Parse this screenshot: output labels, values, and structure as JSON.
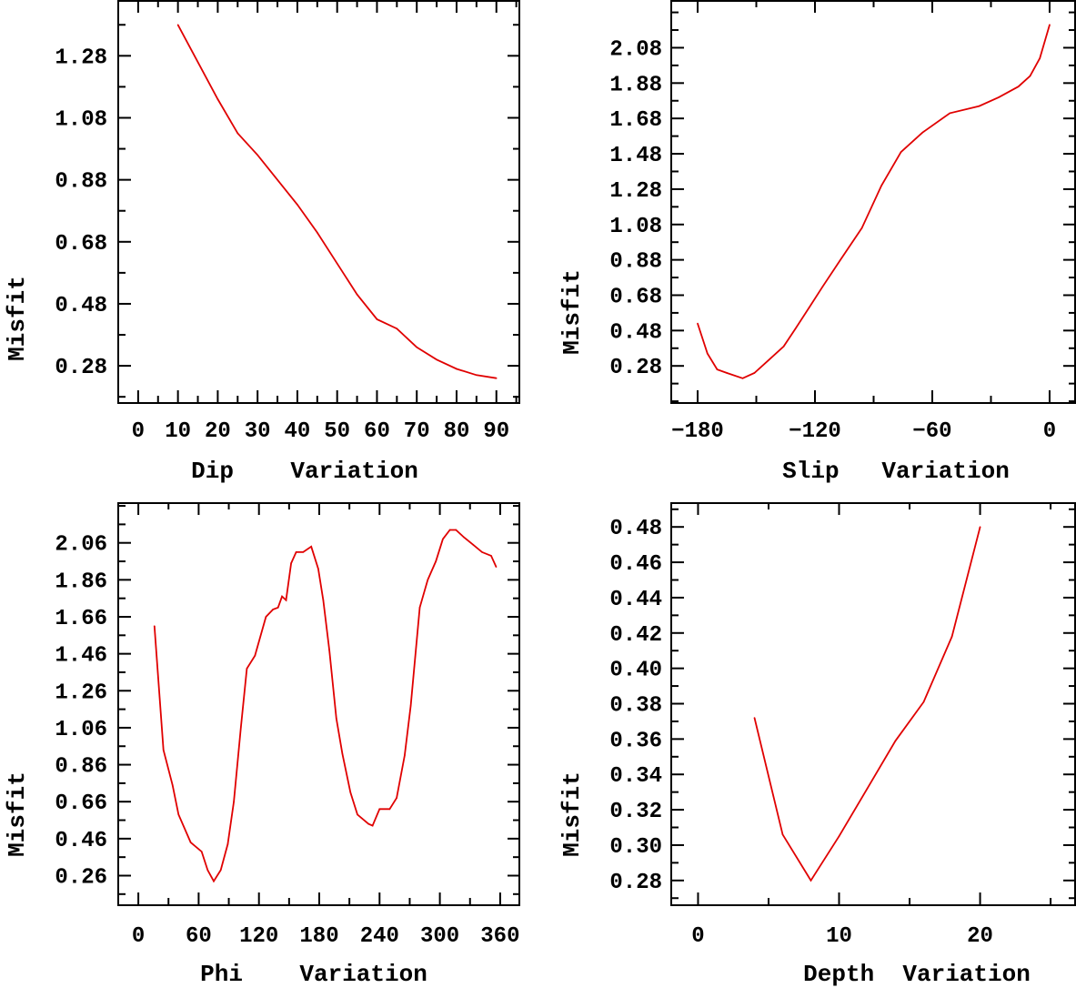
{
  "line_color": "#e00000",
  "chart_data": [
    {
      "type": "line",
      "title": "",
      "xlabel": "Dip    Variation",
      "ylabel": "Misfit",
      "xlim": [
        -5,
        96
      ],
      "ylim": [
        0.16,
        1.46
      ],
      "xticks": [
        0,
        10,
        20,
        30,
        40,
        50,
        60,
        70,
        80,
        90
      ],
      "xtick_labels": [
        "0",
        "10",
        "20",
        "30",
        "40",
        "50",
        "60",
        "70",
        "80",
        "90"
      ],
      "xminor": 5,
      "yticks": [
        0.28,
        0.48,
        0.68,
        0.88,
        1.08,
        1.28
      ],
      "ytick_labels": [
        "0.28",
        "0.48",
        "0.68",
        "0.88",
        "1.08",
        "1.28"
      ],
      "yminor": 0.1,
      "x": [
        10,
        20,
        25,
        30,
        40,
        45,
        50,
        55,
        60,
        65,
        70,
        75,
        80,
        85,
        90
      ],
      "y": [
        1.38,
        1.14,
        1.03,
        0.96,
        0.8,
        0.71,
        0.61,
        0.51,
        0.43,
        0.4,
        0.34,
        0.3,
        0.27,
        0.25,
        0.24
      ]
    },
    {
      "type": "line",
      "title": "",
      "xlabel": "Slip   Variation",
      "ylabel": "Misfit",
      "xlim": [
        -193.5,
        13.5
      ],
      "ylim": [
        0.07,
        2.35
      ],
      "xticks": [
        -180,
        -120,
        -60,
        0
      ],
      "xtick_labels": [
        "−180",
        "−120",
        "−60",
        "0"
      ],
      "xminor": 30,
      "yticks": [
        0.28,
        0.48,
        0.68,
        0.88,
        1.08,
        1.28,
        1.48,
        1.68,
        1.88,
        2.08
      ],
      "ytick_labels": [
        "0.28",
        "0.48",
        "0.68",
        "0.88",
        "1.08",
        "1.28",
        "1.48",
        "1.68",
        "1.88",
        "2.08"
      ],
      "yminor": 0.1,
      "x": [
        -180,
        -175,
        -170,
        -165,
        -157,
        -151,
        -144,
        -136,
        -130,
        -123,
        -116,
        -107,
        -96,
        -86,
        -76,
        -65,
        -51,
        -36,
        -26,
        -16,
        -10,
        -5,
        0
      ],
      "y": [
        0.52,
        0.35,
        0.26,
        0.24,
        0.21,
        0.24,
        0.31,
        0.39,
        0.49,
        0.61,
        0.73,
        0.88,
        1.06,
        1.3,
        1.49,
        1.6,
        1.71,
        1.75,
        1.8,
        1.86,
        1.92,
        2.02,
        2.21
      ]
    },
    {
      "type": "line",
      "title": "",
      "xlabel": "Phi    Variation",
      "ylabel": "Misfit",
      "xlim": [
        -20,
        380
      ],
      "ylim": [
        0.1,
        2.28
      ],
      "xticks": [
        0,
        60,
        120,
        180,
        240,
        300,
        360
      ],
      "xtick_labels": [
        "0",
        "60",
        "120",
        "180",
        "240",
        "300",
        "360"
      ],
      "xminor": 30,
      "yticks": [
        0.26,
        0.46,
        0.66,
        0.86,
        1.06,
        1.26,
        1.46,
        1.66,
        1.86,
        2.06
      ],
      "ytick_labels": [
        "0.26",
        "0.46",
        "0.66",
        "0.86",
        "1.06",
        "1.26",
        "1.46",
        "1.66",
        "1.86",
        "2.06"
      ],
      "yminor": 0.1,
      "x": [
        16,
        25,
        34,
        40,
        52,
        63,
        69,
        75,
        82,
        89,
        95,
        102,
        108,
        116,
        127,
        134,
        139,
        143,
        147,
        152,
        157,
        164,
        172,
        179,
        184,
        190,
        197,
        203,
        211,
        218,
        229,
        233,
        240,
        250,
        257,
        265,
        271,
        280,
        288,
        296,
        303,
        310,
        316,
        324,
        333,
        342,
        351,
        356
      ],
      "y": [
        1.61,
        0.94,
        0.75,
        0.59,
        0.44,
        0.39,
        0.29,
        0.23,
        0.29,
        0.43,
        0.66,
        1.06,
        1.38,
        1.45,
        1.66,
        1.7,
        1.71,
        1.77,
        1.75,
        1.95,
        2.01,
        2.01,
        2.04,
        1.92,
        1.75,
        1.48,
        1.11,
        0.92,
        0.71,
        0.59,
        0.54,
        0.53,
        0.62,
        0.62,
        0.68,
        0.91,
        1.18,
        1.71,
        1.86,
        1.96,
        2.08,
        2.13,
        2.13,
        2.09,
        2.05,
        2.01,
        1.99,
        1.93
      ]
    },
    {
      "type": "line",
      "title": "",
      "xlabel": "Depth  Variation",
      "ylabel": "Misfit",
      "xlim": [
        -1.9,
        26.8
      ],
      "ylim": [
        0.266,
        0.494
      ],
      "xticks": [
        0,
        10,
        20
      ],
      "xtick_labels": [
        "0",
        "10",
        "20"
      ],
      "xminor": 5,
      "yticks": [
        0.28,
        0.3,
        0.32,
        0.34,
        0.36,
        0.38,
        0.4,
        0.42,
        0.44,
        0.46,
        0.48
      ],
      "ytick_labels": [
        "0.28",
        "0.30",
        "0.32",
        "0.34",
        "0.36",
        "0.38",
        "0.40",
        "0.42",
        "0.44",
        "0.46",
        "0.48"
      ],
      "yminor": 0.01,
      "x": [
        4,
        6,
        8,
        10,
        12,
        14,
        16,
        18,
        20
      ],
      "y": [
        0.372,
        0.306,
        0.28,
        0.305,
        0.332,
        0.359,
        0.381,
        0.418,
        0.48
      ]
    }
  ]
}
